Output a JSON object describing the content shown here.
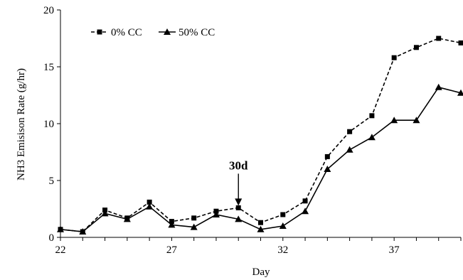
{
  "chart_data": {
    "type": "line",
    "title": "",
    "xlabel": "Day",
    "ylabel": "NH3 Emisison Rate (g/hr)",
    "xlim": [
      22,
      40
    ],
    "ylim": [
      0,
      20
    ],
    "x_ticks": [
      22,
      27,
      32,
      37
    ],
    "y_ticks": [
      0,
      5,
      10,
      15,
      20
    ],
    "grid": false,
    "legend_position": "top-left",
    "x": [
      22,
      23,
      24,
      25,
      26,
      27,
      28,
      29,
      30,
      31,
      32,
      33,
      34,
      35,
      36,
      37,
      38,
      39,
      40
    ],
    "series": [
      {
        "name": "0% CC",
        "line": "dashed",
        "marker": "square",
        "color": "#000000",
        "values": [
          0.7,
          0.5,
          2.4,
          1.7,
          3.1,
          1.4,
          1.7,
          2.3,
          2.6,
          1.3,
          2.0,
          3.2,
          7.1,
          9.3,
          10.7,
          15.8,
          16.7,
          17.5,
          17.1
        ]
      },
      {
        "name": "50% CC",
        "line": "solid",
        "marker": "triangle",
        "color": "#000000",
        "values": [
          0.7,
          0.5,
          2.1,
          1.6,
          2.7,
          1.1,
          0.9,
          2.0,
          1.6,
          0.7,
          1.0,
          2.3,
          6.0,
          7.7,
          8.8,
          10.3,
          10.3,
          13.2,
          12.7
        ]
      }
    ],
    "annotations": [
      {
        "text": "30d",
        "x": 30,
        "y": 2.6,
        "arrow": "down"
      }
    ]
  }
}
